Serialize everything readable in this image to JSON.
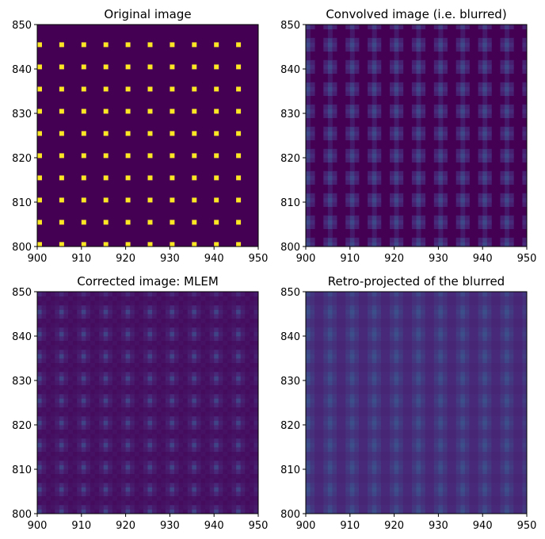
{
  "chart_data": [
    {
      "type": "heatmap",
      "title": "Original image",
      "xlim": [
        900,
        950
      ],
      "ylim": [
        800,
        850
      ],
      "xticks": [
        900,
        910,
        920,
        930,
        940,
        950
      ],
      "yticks": [
        800,
        810,
        820,
        830,
        840,
        850
      ],
      "colormap": "viridis",
      "pattern": "dots",
      "dot_spacing": 5,
      "background_level": 0.0,
      "peak_level": 1.0
    },
    {
      "type": "heatmap",
      "title": "Convolved image (i.e. blurred)",
      "xlim": [
        900,
        950
      ],
      "ylim": [
        800,
        850
      ],
      "xticks": [
        900,
        910,
        920,
        930,
        940,
        950
      ],
      "yticks": [
        800,
        810,
        820,
        830,
        840,
        850
      ],
      "colormap": "viridis",
      "pattern": "blurred-dots",
      "dot_spacing": 5,
      "background_level": 0.0,
      "peak_level": 0.22
    },
    {
      "type": "heatmap",
      "title": "Corrected image: MLEM",
      "xlim": [
        900,
        950
      ],
      "ylim": [
        800,
        850
      ],
      "xticks": [
        900,
        910,
        920,
        930,
        940,
        950
      ],
      "yticks": [
        800,
        810,
        820,
        830,
        840,
        850
      ],
      "colormap": "viridis",
      "pattern": "mlem-dots",
      "dot_spacing": 5,
      "background_level": 0.03,
      "peak_level": 0.2
    },
    {
      "type": "heatmap",
      "title": "Retro-projected of the blurred",
      "xlim": [
        900,
        950
      ],
      "ylim": [
        800,
        850
      ],
      "xticks": [
        900,
        910,
        920,
        930,
        940,
        950
      ],
      "yticks": [
        800,
        810,
        820,
        830,
        840,
        850
      ],
      "colormap": "viridis",
      "pattern": "smooth-dots",
      "dot_spacing": 5,
      "background_level": 0.1,
      "peak_level": 0.24
    }
  ]
}
